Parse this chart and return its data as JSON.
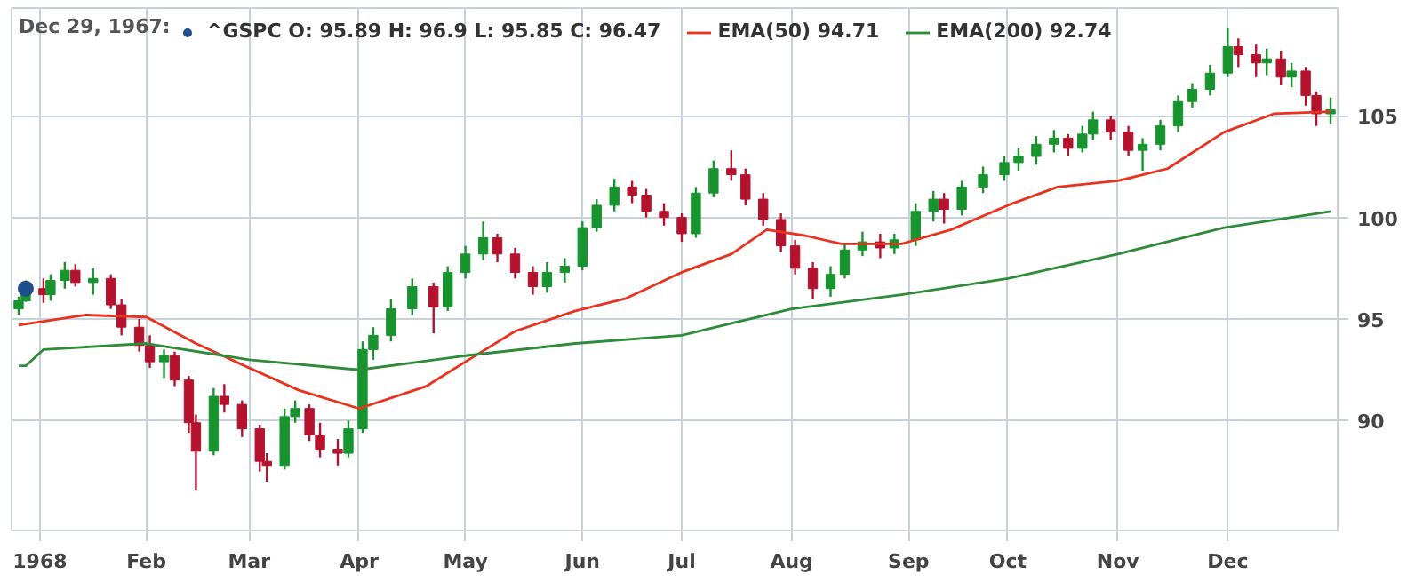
{
  "chart_data": {
    "type": "candlestick",
    "legend_title": "Dec 29, 1967:",
    "x": [
      "1967-12-27",
      "1967-12-29",
      "1968-01-03",
      "1968-01-05",
      "1968-01-09",
      "1968-01-12",
      "1968-01-17",
      "1968-01-22",
      "1968-01-25",
      "1968-01-30",
      "1968-02-02",
      "1968-02-06",
      "1968-02-09",
      "1968-02-13",
      "1968-02-15",
      "1968-02-20",
      "1968-02-23",
      "1968-02-28",
      "1968-03-04",
      "1968-03-06",
      "1968-03-11",
      "1968-03-14",
      "1968-03-18",
      "1968-03-21",
      "1968-03-26",
      "1968-03-29",
      "1968-04-02",
      "1968-04-05",
      "1968-04-10",
      "1968-04-16",
      "1968-04-22",
      "1968-04-26",
      "1968-05-01",
      "1968-05-06",
      "1968-05-10",
      "1968-05-15",
      "1968-05-20",
      "1968-05-24",
      "1968-05-29",
      "1968-06-03",
      "1968-06-07",
      "1968-06-12",
      "1968-06-17",
      "1968-06-21",
      "1968-06-26",
      "1968-07-01",
      "1968-07-05",
      "1968-07-10",
      "1968-07-15",
      "1968-07-19",
      "1968-07-24",
      "1968-07-29",
      "1968-08-02",
      "1968-08-07",
      "1968-08-12",
      "1968-08-16",
      "1968-08-21",
      "1968-08-26",
      "1968-08-30",
      "1968-09-05",
      "1968-09-10",
      "1968-09-13",
      "1968-09-18",
      "1968-09-24",
      "1968-09-30",
      "1968-10-04",
      "1968-10-09",
      "1968-10-14",
      "1968-10-18",
      "1968-10-22",
      "1968-10-25",
      "1968-10-30",
      "1968-11-04",
      "1968-11-08",
      "1968-11-13",
      "1968-11-18",
      "1968-11-22",
      "1968-11-27",
      "1968-12-02",
      "1968-12-05",
      "1968-12-10",
      "1968-12-13",
      "1968-12-17",
      "1968-12-20",
      "1968-12-24",
      "1968-12-27",
      "1968-12-31"
    ],
    "ohlc": [
      [
        95.5,
        96.1,
        95.2,
        95.9
      ],
      [
        95.89,
        96.9,
        95.85,
        96.47
      ],
      [
        96.5,
        97.0,
        95.8,
        96.2
      ],
      [
        96.2,
        97.2,
        95.9,
        96.9
      ],
      [
        96.9,
        97.8,
        96.5,
        97.4
      ],
      [
        97.4,
        97.7,
        96.6,
        96.8
      ],
      [
        96.8,
        97.5,
        96.2,
        97.0
      ],
      [
        97.0,
        97.2,
        95.5,
        95.7
      ],
      [
        95.7,
        96.0,
        94.2,
        94.6
      ],
      [
        94.6,
        95.0,
        93.4,
        93.7
      ],
      [
        93.7,
        94.2,
        92.6,
        92.9
      ],
      [
        92.9,
        93.5,
        92.1,
        93.2
      ],
      [
        93.2,
        93.4,
        91.7,
        92.0
      ],
      [
        92.0,
        92.2,
        89.4,
        89.9
      ],
      [
        89.9,
        90.3,
        86.6,
        88.5
      ],
      [
        88.5,
        91.6,
        88.3,
        91.2
      ],
      [
        91.2,
        91.8,
        90.4,
        90.8
      ],
      [
        90.8,
        91.0,
        89.2,
        89.6
      ],
      [
        89.6,
        89.8,
        87.5,
        88.0
      ],
      [
        88.0,
        88.4,
        87.0,
        87.8
      ],
      [
        87.8,
        90.6,
        87.6,
        90.2
      ],
      [
        90.2,
        91.0,
        89.9,
        90.6
      ],
      [
        90.6,
        90.8,
        89.0,
        89.3
      ],
      [
        89.3,
        89.9,
        88.2,
        88.6
      ],
      [
        88.6,
        89.1,
        87.8,
        88.4
      ],
      [
        88.4,
        90.0,
        88.2,
        89.6
      ],
      [
        89.6,
        93.9,
        89.4,
        93.5
      ],
      [
        93.5,
        94.6,
        93.0,
        94.2
      ],
      [
        94.2,
        96.0,
        93.9,
        95.5
      ],
      [
        95.5,
        97.0,
        95.2,
        96.6
      ],
      [
        96.6,
        96.8,
        94.3,
        95.6
      ],
      [
        95.6,
        97.6,
        95.4,
        97.3
      ],
      [
        97.3,
        98.6,
        97.0,
        98.2
      ],
      [
        98.2,
        99.8,
        97.9,
        99.0
      ],
      [
        99.0,
        99.2,
        97.8,
        98.2
      ],
      [
        98.2,
        98.5,
        97.0,
        97.3
      ],
      [
        97.3,
        97.6,
        96.2,
        96.6
      ],
      [
        96.6,
        97.8,
        96.3,
        97.3
      ],
      [
        97.3,
        98.0,
        96.8,
        97.6
      ],
      [
        97.6,
        99.8,
        97.4,
        99.5
      ],
      [
        99.5,
        100.9,
        99.3,
        100.6
      ],
      [
        100.6,
        101.9,
        100.3,
        101.5
      ],
      [
        101.5,
        101.8,
        100.7,
        101.1
      ],
      [
        101.1,
        101.4,
        100.0,
        100.3
      ],
      [
        100.3,
        100.7,
        99.6,
        100.0
      ],
      [
        100.0,
        100.2,
        98.8,
        99.2
      ],
      [
        99.2,
        101.5,
        99.0,
        101.2
      ],
      [
        101.2,
        102.8,
        101.0,
        102.4
      ],
      [
        102.4,
        103.3,
        101.8,
        102.1
      ],
      [
        102.1,
        102.4,
        100.6,
        100.9
      ],
      [
        100.9,
        101.2,
        99.6,
        99.9
      ],
      [
        99.9,
        100.2,
        98.3,
        98.6
      ],
      [
        98.6,
        98.9,
        97.2,
        97.5
      ],
      [
        97.5,
        97.8,
        96.0,
        96.5
      ],
      [
        96.5,
        97.6,
        96.1,
        97.2
      ],
      [
        97.2,
        98.7,
        97.0,
        98.4
      ],
      [
        98.4,
        99.3,
        98.1,
        98.8
      ],
      [
        98.8,
        99.2,
        98.0,
        98.5
      ],
      [
        98.5,
        99.2,
        98.2,
        98.9
      ],
      [
        98.9,
        100.7,
        98.6,
        100.3
      ],
      [
        100.3,
        101.3,
        99.8,
        100.9
      ],
      [
        100.9,
        101.2,
        99.7,
        100.4
      ],
      [
        100.4,
        101.8,
        100.1,
        101.5
      ],
      [
        101.5,
        102.5,
        101.2,
        102.1
      ],
      [
        102.1,
        103.0,
        101.8,
        102.7
      ],
      [
        102.7,
        103.4,
        102.3,
        103.0
      ],
      [
        103.0,
        104.0,
        102.6,
        103.6
      ],
      [
        103.6,
        104.3,
        103.2,
        103.9
      ],
      [
        103.9,
        104.1,
        103.0,
        103.4
      ],
      [
        103.4,
        104.5,
        103.2,
        104.1
      ],
      [
        104.1,
        105.2,
        103.8,
        104.8
      ],
      [
        104.8,
        105.0,
        103.8,
        104.2
      ],
      [
        104.2,
        104.5,
        103.0,
        103.3
      ],
      [
        103.3,
        103.9,
        102.3,
        103.6
      ],
      [
        103.6,
        104.8,
        103.3,
        104.5
      ],
      [
        104.5,
        106.0,
        104.2,
        105.7
      ],
      [
        105.7,
        106.6,
        105.4,
        106.3
      ],
      [
        106.3,
        107.5,
        106.0,
        107.1
      ],
      [
        107.1,
        109.3,
        106.9,
        108.4
      ],
      [
        108.4,
        108.8,
        107.4,
        108.0
      ],
      [
        108.0,
        108.5,
        106.9,
        107.6
      ],
      [
        107.6,
        108.3,
        107.0,
        107.8
      ],
      [
        107.8,
        108.2,
        106.5,
        106.9
      ],
      [
        106.9,
        107.6,
        106.4,
        107.2
      ],
      [
        107.2,
        107.4,
        105.5,
        106.0
      ],
      [
        106.0,
        106.2,
        104.5,
        105.1
      ],
      [
        105.1,
        105.9,
        104.6,
        105.3
      ]
    ],
    "colors": [
      "#17942e",
      "#17942e",
      "#b5122e",
      "#17942e",
      "#17942e",
      "#b5122e",
      "#17942e",
      "#b5122e",
      "#b5122e",
      "#b5122e",
      "#b5122e",
      "#17942e",
      "#b5122e",
      "#b5122e",
      "#b5122e",
      "#17942e",
      "#b5122e",
      "#b5122e",
      "#b5122e",
      "#b5122e",
      "#17942e",
      "#17942e",
      "#b5122e",
      "#b5122e",
      "#b5122e",
      "#17942e",
      "#17942e",
      "#17942e",
      "#17942e",
      "#17942e",
      "#b5122e",
      "#17942e",
      "#17942e",
      "#17942e",
      "#b5122e",
      "#b5122e",
      "#b5122e",
      "#17942e",
      "#17942e",
      "#17942e",
      "#17942e",
      "#17942e",
      "#b5122e",
      "#b5122e",
      "#b5122e",
      "#b5122e",
      "#17942e",
      "#17942e",
      "#b5122e",
      "#b5122e",
      "#b5122e",
      "#b5122e",
      "#b5122e",
      "#b5122e",
      "#17942e",
      "#17942e",
      "#17942e",
      "#b5122e",
      "#17942e",
      "#17942e",
      "#17942e",
      "#b5122e",
      "#17942e",
      "#17942e",
      "#17942e",
      "#17942e",
      "#17942e",
      "#17942e",
      "#b5122e",
      "#17942e",
      "#17942e",
      "#b5122e",
      "#b5122e",
      "#17942e",
      "#17942e",
      "#17942e",
      "#17942e",
      "#17942e",
      "#17942e",
      "#b5122e",
      "#b5122e",
      "#17942e",
      "#b5122e",
      "#17942e",
      "#b5122e",
      "#b5122e",
      "#17942e"
    ],
    "series": [
      {
        "type": "scatter",
        "name": "^GSPC O: 95.89 H: 96.9 L: 95.85 C: 96.47",
        "color": "#1f4e8c",
        "x": [
          "1967-12-29"
        ],
        "values": [
          96.5
        ]
      },
      {
        "type": "line",
        "name": "EMA(50) 94.71",
        "color": "#e8321e",
        "x": [
          "1967-12-27",
          "1968-01-15",
          "1968-02-01",
          "1968-02-15",
          "1968-03-01",
          "1968-03-15",
          "1968-04-01",
          "1968-04-20",
          "1968-05-01",
          "1968-05-15",
          "1968-06-01",
          "1968-06-15",
          "1968-07-01",
          "1968-07-15",
          "1968-07-25",
          "1968-08-05",
          "1968-08-15",
          "1968-09-01",
          "1968-09-15",
          "1968-10-01",
          "1968-10-15",
          "1968-11-01",
          "1968-11-15",
          "1968-12-01",
          "1968-12-15",
          "1968-12-31"
        ],
        "values": [
          94.7,
          95.2,
          95.1,
          93.8,
          92.6,
          91.5,
          90.6,
          91.7,
          92.9,
          94.4,
          95.4,
          96.0,
          97.3,
          98.2,
          99.4,
          99.1,
          98.7,
          98.7,
          99.4,
          100.6,
          101.5,
          101.8,
          102.4,
          104.2,
          105.1,
          105.2
        ]
      },
      {
        "type": "line",
        "name": "EMA(200) 92.74",
        "color": "#2e8b3a",
        "x": [
          "1967-12-27",
          "1967-12-29",
          "1968-01-03",
          "1968-02-01",
          "1968-03-01",
          "1968-04-01",
          "1968-05-01",
          "1968-06-01",
          "1968-07-01",
          "1968-07-20",
          "1968-08-01",
          "1968-09-01",
          "1968-10-01",
          "1968-11-01",
          "1968-12-01",
          "1968-12-31"
        ],
        "values": [
          92.7,
          92.7,
          93.5,
          93.8,
          93.0,
          92.5,
          93.2,
          93.8,
          94.2,
          95.0,
          95.5,
          96.2,
          97.0,
          98.2,
          99.5,
          100.3
        ]
      }
    ],
    "xlim": [
      "1967-12-25",
      "1969-01-02"
    ],
    "xticks": [
      {
        "value": "1968-01-02",
        "label": "1968"
      },
      {
        "value": "1968-02-01",
        "label": "Feb"
      },
      {
        "value": "1968-03-01",
        "label": "Mar"
      },
      {
        "value": "1968-04-01",
        "label": "Apr"
      },
      {
        "value": "1968-05-01",
        "label": "May"
      },
      {
        "value": "1968-06-03",
        "label": "Jun"
      },
      {
        "value": "1968-07-01",
        "label": "Jul"
      },
      {
        "value": "1968-08-01",
        "label": "Aug"
      },
      {
        "value": "1968-09-03",
        "label": "Sep"
      },
      {
        "value": "1968-10-01",
        "label": "Oct"
      },
      {
        "value": "1968-11-01",
        "label": "Nov"
      },
      {
        "value": "1968-12-02",
        "label": "Dec"
      }
    ],
    "ylim": [
      84.6,
      110.3
    ],
    "yticks": [
      90,
      95,
      100,
      105
    ],
    "grid": true,
    "legend": "top left"
  }
}
